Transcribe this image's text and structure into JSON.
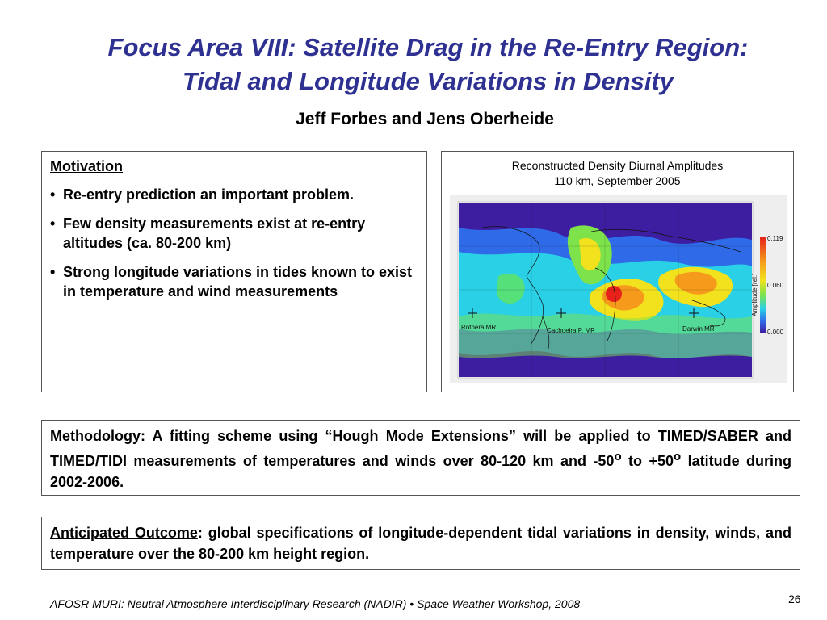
{
  "title": {
    "line1": "Focus Area VIII: Satellite Drag in the Re-Entry Region:",
    "line2": "Tidal and Longitude Variations in Density"
  },
  "authors": "Jeff Forbes and Jens Oberheide",
  "motivation": {
    "heading": "Motivation",
    "bullets": [
      "Re-entry prediction an important problem.",
      "Few density measurements exist at re-entry altitudes (ca. 80-200 km)",
      "Strong longitude variations in tides known to exist in temperature and wind measurements"
    ]
  },
  "figure": {
    "title_line1": "Reconstructed Density Diurnal Amplitudes",
    "title_line2": "110 km, September 2005",
    "colorbar_ticks": [
      "0.119",
      "0.060",
      "0.000"
    ],
    "colorbar_label": "Amplitude [rel.]",
    "stations": [
      "Rothera MR",
      "Cachoeira P. MR",
      "Darwin MR"
    ]
  },
  "methodology": {
    "label": "Methodology",
    "text_a": ": A fitting scheme using “Hough Mode Extensions” will be applied to TIMED/SABER and TIMED/TIDI measurements of temperatures and winds over 80-120 km and -50",
    "sup": "o",
    "text_b": " to +50",
    "text_c": " latitude during 2002-2006."
  },
  "outcome": {
    "label": "Anticipated Outcome",
    "text": ": global specifications of longitude-dependent tidal variations in density, winds, and temperature over the 80-200 km height region."
  },
  "footer": "AFOSR MURI: Neutral Atmosphere Interdisciplinary Research (NADIR)   •  Space Weather Workshop, 2008",
  "page_number": "26"
}
